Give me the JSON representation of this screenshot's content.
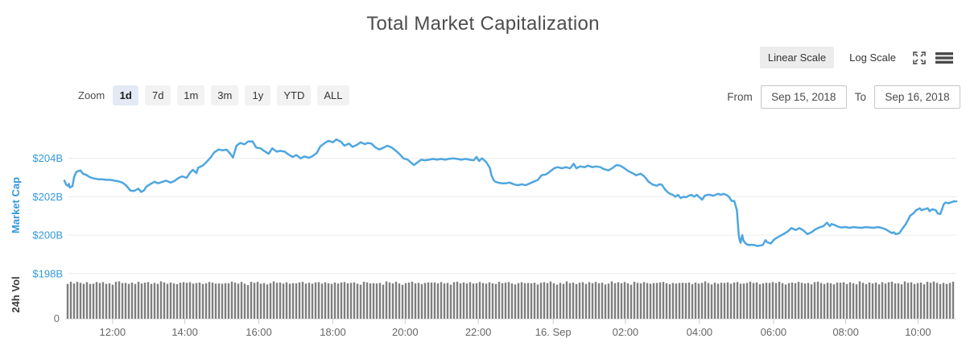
{
  "title": "Total Market Capitalization",
  "scale_toggle": {
    "linear_label": "Linear Scale",
    "log_label": "Log Scale",
    "selected": "Linear Scale"
  },
  "header_icons": {
    "fullscreen": "expand-arrows",
    "menu": "hamburger"
  },
  "range_selector": {
    "label": "Zoom",
    "options": [
      "1d",
      "7d",
      "1m",
      "3m",
      "1y",
      "YTD",
      "ALL"
    ],
    "selected": "1d"
  },
  "date_range": {
    "from_label": "From",
    "from_value": "Sep 15, 2018",
    "to_label": "To",
    "to_value": "Sep 16, 2018"
  },
  "chart_data": {
    "type": "line",
    "title": "Total Market Capitalization",
    "grid": "horizontal-only",
    "gridline_color": "#ececec",
    "y_axis": {
      "label": "Market Cap",
      "label_color": "#3498db",
      "tick_labels": [
        "$204B",
        "$202B",
        "$200B",
        "$198B"
      ],
      "tick_values": [
        204,
        202,
        200,
        198
      ],
      "unit": "USD billions",
      "range_shown": [
        198,
        205.5
      ]
    },
    "x_axis": {
      "start": "Sep 15 ~10:40",
      "end": "Sep 16 ~11:05",
      "ticks": [
        {
          "label": "12:00",
          "f": 0.054
        },
        {
          "label": "14:00",
          "f": 0.135
        },
        {
          "label": "16:00",
          "f": 0.218
        },
        {
          "label": "18:00",
          "f": 0.301
        },
        {
          "label": "20:00",
          "f": 0.382
        },
        {
          "label": "22:00",
          "f": 0.464
        },
        {
          "label": "16. Sep",
          "f": 0.548
        },
        {
          "label": "02:00",
          "f": 0.629
        },
        {
          "label": "04:00",
          "f": 0.712
        },
        {
          "label": "06:00",
          "f": 0.795
        },
        {
          "label": "08:00",
          "f": 0.876
        },
        {
          "label": "10:00",
          "f": 0.957
        }
      ]
    },
    "series": {
      "name": "Market Cap",
      "color": "#4fa6df",
      "points": [
        [
          0,
          202.84
        ],
        [
          0.002,
          202.63
        ],
        [
          0.004,
          202.57
        ],
        [
          0.005,
          202.67
        ],
        [
          0.006,
          202.48
        ],
        [
          0.009,
          202.55
        ],
        [
          0.011,
          203.05
        ],
        [
          0.013,
          203.26
        ],
        [
          0.015,
          203.33
        ],
        [
          0.018,
          203.37
        ],
        [
          0.021,
          203.19
        ],
        [
          0.024,
          203.15
        ],
        [
          0.029,
          203.01
        ],
        [
          0.033,
          202.95
        ],
        [
          0.038,
          202.91
        ],
        [
          0.042,
          202.91
        ],
        [
          0.047,
          202.88
        ],
        [
          0.051,
          202.88
        ],
        [
          0.056,
          202.84
        ],
        [
          0.06,
          202.81
        ],
        [
          0.065,
          202.74
        ],
        [
          0.069,
          202.6
        ],
        [
          0.074,
          202.32
        ],
        [
          0.078,
          202.3
        ],
        [
          0.083,
          202.42
        ],
        [
          0.086,
          202.25
        ],
        [
          0.089,
          202.32
        ],
        [
          0.092,
          202.53
        ],
        [
          0.096,
          202.65
        ],
        [
          0.101,
          202.78
        ],
        [
          0.105,
          202.7
        ],
        [
          0.11,
          202.78
        ],
        [
          0.114,
          202.84
        ],
        [
          0.119,
          202.74
        ],
        [
          0.123,
          202.81
        ],
        [
          0.128,
          202.98
        ],
        [
          0.132,
          203.06
        ],
        [
          0.137,
          202.98
        ],
        [
          0.141,
          203.26
        ],
        [
          0.144,
          203.4
        ],
        [
          0.148,
          203.23
        ],
        [
          0.15,
          203.51
        ],
        [
          0.155,
          203.62
        ],
        [
          0.159,
          203.79
        ],
        [
          0.164,
          204.04
        ],
        [
          0.168,
          204.31
        ],
        [
          0.173,
          204.46
        ],
        [
          0.177,
          204.42
        ],
        [
          0.182,
          204.45
        ],
        [
          0.186,
          204.24
        ],
        [
          0.189,
          204.04
        ],
        [
          0.193,
          204.66
        ],
        [
          0.197,
          204.8
        ],
        [
          0.202,
          204.73
        ],
        [
          0.206,
          204.88
        ],
        [
          0.211,
          204.88
        ],
        [
          0.215,
          204.56
        ],
        [
          0.22,
          204.52
        ],
        [
          0.224,
          204.38
        ],
        [
          0.229,
          204.24
        ],
        [
          0.233,
          204.52
        ],
        [
          0.238,
          204.35
        ],
        [
          0.242,
          204.39
        ],
        [
          0.247,
          204.35
        ],
        [
          0.251,
          204.21
        ],
        [
          0.256,
          204.07
        ],
        [
          0.26,
          204.17
        ],
        [
          0.265,
          204
        ],
        [
          0.269,
          204.1
        ],
        [
          0.274,
          204.03
        ],
        [
          0.278,
          204.11
        ],
        [
          0.283,
          204.28
        ],
        [
          0.287,
          204.63
        ],
        [
          0.292,
          204.8
        ],
        [
          0.296,
          204.91
        ],
        [
          0.301,
          204.84
        ],
        [
          0.305,
          204.98
        ],
        [
          0.31,
          204.87
        ],
        [
          0.314,
          204.66
        ],
        [
          0.319,
          204.77
        ],
        [
          0.323,
          204.6
        ],
        [
          0.328,
          204.7
        ],
        [
          0.332,
          204.84
        ],
        [
          0.337,
          204.74
        ],
        [
          0.34,
          204.8
        ],
        [
          0.344,
          204.77
        ],
        [
          0.349,
          204.56
        ],
        [
          0.353,
          204.46
        ],
        [
          0.358,
          204.56
        ],
        [
          0.362,
          204.66
        ],
        [
          0.367,
          204.56
        ],
        [
          0.371,
          204.42
        ],
        [
          0.376,
          204.21
        ],
        [
          0.38,
          204
        ],
        [
          0.385,
          203.93
        ],
        [
          0.389,
          203.76
        ],
        [
          0.392,
          203.65
        ],
        [
          0.395,
          203.76
        ],
        [
          0.4,
          203.93
        ],
        [
          0.404,
          203.9
        ],
        [
          0.409,
          203.93
        ],
        [
          0.413,
          203.97
        ],
        [
          0.418,
          203.93
        ],
        [
          0.422,
          203.97
        ],
        [
          0.427,
          203.93
        ],
        [
          0.431,
          203.97
        ],
        [
          0.436,
          204
        ],
        [
          0.44,
          203.97
        ],
        [
          0.445,
          203.93
        ],
        [
          0.45,
          203.97
        ],
        [
          0.454,
          203.93
        ],
        [
          0.459,
          203.9
        ],
        [
          0.462,
          204.07
        ],
        [
          0.465,
          203.86
        ],
        [
          0.468,
          204
        ],
        [
          0.47,
          203.93
        ],
        [
          0.473,
          203.8
        ],
        [
          0.477,
          203.5
        ],
        [
          0.479,
          203.09
        ],
        [
          0.482,
          202.81
        ],
        [
          0.486,
          202.74
        ],
        [
          0.49,
          202.7
        ],
        [
          0.495,
          202.7
        ],
        [
          0.499,
          202.74
        ],
        [
          0.504,
          202.65
        ],
        [
          0.508,
          202.6
        ],
        [
          0.513,
          202.65
        ],
        [
          0.517,
          202.6
        ],
        [
          0.522,
          202.7
        ],
        [
          0.526,
          202.78
        ],
        [
          0.531,
          202.88
        ],
        [
          0.535,
          203.12
        ],
        [
          0.54,
          203.16
        ],
        [
          0.544,
          203.3
        ],
        [
          0.549,
          203.48
        ],
        [
          0.553,
          203.54
        ],
        [
          0.558,
          203.48
        ],
        [
          0.562,
          203.54
        ],
        [
          0.567,
          203.48
        ],
        [
          0.571,
          203.72
        ],
        [
          0.574,
          203.48
        ],
        [
          0.578,
          203.58
        ],
        [
          0.583,
          203.54
        ],
        [
          0.587,
          203.62
        ],
        [
          0.592,
          203.54
        ],
        [
          0.596,
          203.58
        ],
        [
          0.601,
          203.54
        ],
        [
          0.605,
          203.44
        ],
        [
          0.61,
          203.37
        ],
        [
          0.614,
          203.48
        ],
        [
          0.619,
          203.65
        ],
        [
          0.623,
          203.62
        ],
        [
          0.628,
          203.48
        ],
        [
          0.632,
          203.34
        ],
        [
          0.637,
          203.23
        ],
        [
          0.641,
          203.12
        ],
        [
          0.646,
          203.2
        ],
        [
          0.65,
          203.07
        ],
        [
          0.655,
          202.78
        ],
        [
          0.659,
          202.65
        ],
        [
          0.664,
          202.57
        ],
        [
          0.667,
          202.65
        ],
        [
          0.67,
          202.62
        ],
        [
          0.673,
          202.4
        ],
        [
          0.676,
          202.25
        ],
        [
          0.679,
          202.15
        ],
        [
          0.682,
          202.1
        ],
        [
          0.685,
          202
        ],
        [
          0.688,
          202.1
        ],
        [
          0.691,
          201.93
        ],
        [
          0.694,
          202
        ],
        [
          0.697,
          201.97
        ],
        [
          0.7,
          202.05
        ],
        [
          0.703,
          202.1
        ],
        [
          0.706,
          202
        ],
        [
          0.709,
          202.1
        ],
        [
          0.712,
          201.97
        ],
        [
          0.715,
          201.85
        ],
        [
          0.718,
          202.05
        ],
        [
          0.721,
          202.1
        ],
        [
          0.724,
          202.1
        ],
        [
          0.727,
          202.05
        ],
        [
          0.73,
          202.1
        ],
        [
          0.733,
          202.15
        ],
        [
          0.736,
          202.1
        ],
        [
          0.739,
          202.15
        ],
        [
          0.742,
          202.1
        ],
        [
          0.745,
          202
        ],
        [
          0.748,
          201.78
        ],
        [
          0.751,
          201.78
        ],
        [
          0.754,
          201.3
        ],
        [
          0.756,
          200.05
        ],
        [
          0.757,
          199.75
        ],
        [
          0.758,
          199.6
        ],
        [
          0.76,
          200
        ],
        [
          0.761,
          199.75
        ],
        [
          0.763,
          199.6
        ],
        [
          0.765,
          199.52
        ],
        [
          0.768,
          199.48
        ],
        [
          0.77,
          199.5
        ],
        [
          0.774,
          199.48
        ],
        [
          0.777,
          199.43
        ],
        [
          0.783,
          199.49
        ],
        [
          0.786,
          199.74
        ],
        [
          0.788,
          199.63
        ],
        [
          0.792,
          199.57
        ],
        [
          0.795,
          199.74
        ],
        [
          0.797,
          199.81
        ],
        [
          0.802,
          199.95
        ],
        [
          0.806,
          200.05
        ],
        [
          0.811,
          200.19
        ],
        [
          0.815,
          200.37
        ],
        [
          0.82,
          200.27
        ],
        [
          0.824,
          200.37
        ],
        [
          0.829,
          200.23
        ],
        [
          0.833,
          200.05
        ],
        [
          0.838,
          200.16
        ],
        [
          0.842,
          200.3
        ],
        [
          0.847,
          200.41
        ],
        [
          0.851,
          200.47
        ],
        [
          0.855,
          200.65
        ],
        [
          0.858,
          200.47
        ],
        [
          0.86,
          200.58
        ],
        [
          0.864,
          200.52
        ],
        [
          0.867,
          200.45
        ],
        [
          0.871,
          200.4
        ],
        [
          0.876,
          200.42
        ],
        [
          0.88,
          200.38
        ],
        [
          0.885,
          200.42
        ],
        [
          0.889,
          200.4
        ],
        [
          0.894,
          200.38
        ],
        [
          0.898,
          200.42
        ],
        [
          0.903,
          200.4
        ],
        [
          0.907,
          200.38
        ],
        [
          0.912,
          200.42
        ],
        [
          0.916,
          200.38
        ],
        [
          0.921,
          200.3
        ],
        [
          0.925,
          200.18
        ],
        [
          0.928,
          200.1
        ],
        [
          0.93,
          200.15
        ],
        [
          0.932,
          200.05
        ],
        [
          0.936,
          200.1
        ],
        [
          0.939,
          200.3
        ],
        [
          0.943,
          200.55
        ],
        [
          0.946,
          200.8
        ],
        [
          0.948,
          201
        ],
        [
          0.952,
          201.14
        ],
        [
          0.955,
          201.3
        ],
        [
          0.959,
          201.4
        ],
        [
          0.961,
          201.3
        ],
        [
          0.964,
          201.35
        ],
        [
          0.968,
          201.4
        ],
        [
          0.97,
          201.25
        ],
        [
          0.973,
          201.35
        ],
        [
          0.977,
          201.3
        ],
        [
          0.979,
          201.14
        ],
        [
          0.982,
          201.1
        ],
        [
          0.986,
          201.62
        ],
        [
          0.988,
          201.7
        ],
        [
          0.991,
          201.66
        ],
        [
          0.995,
          201.72
        ],
        [
          0.997,
          201.76
        ],
        [
          1,
          201.76
        ]
      ]
    },
    "volume": {
      "label": "24h Vol",
      "label_color": "#3a3a3a",
      "zero_label": "0",
      "bar_color": "#7e7e7e",
      "count": 276,
      "rel_heights": [
        0.95,
        0.97,
        0.93,
        0.98,
        0.96,
        0.94,
        0.99,
        0.95,
        0.92,
        0.97,
        0.95,
        0.98,
        0.94,
        0.96,
        0.93,
        0.97,
        0.99,
        0.95,
        0.96,
        0.94,
        0.98,
        0.95,
        0.97,
        0.93,
        0.96,
        0.98,
        0.94,
        0.97,
        0.95,
        0.99,
        0.96,
        0.93,
        0.97,
        0.95,
        0.94,
        0.98,
        0.96,
        0.95,
        0.97,
        0.94,
        0.96,
        0.98,
        0.95,
        0.93,
        0.97,
        0.96,
        0.94,
        0.95
      ]
    }
  }
}
